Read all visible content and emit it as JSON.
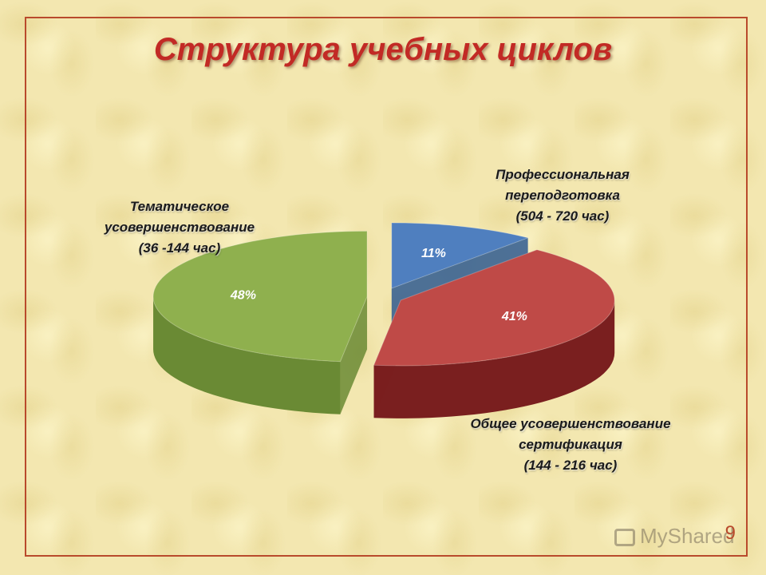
{
  "title": "Структура учебных циклов",
  "page_number": "9",
  "watermark": "MyShared",
  "labels": {
    "professional": [
      "Профессиональная",
      "переподготовка",
      "(504 - 720 час)"
    ],
    "thematic": [
      "Тематическое",
      "усовершенствование",
      "(36 -144 час)"
    ],
    "general": [
      "Общее усовершенствование",
      "сертификация",
      "(144 - 216 час)"
    ]
  },
  "chart_data": {
    "type": "pie",
    "style": "3d-exploded",
    "categories": [
      "Профессиональная переподготовка (504 - 720 час)",
      "Общее усовершенствование сертификация (144 - 216 час)",
      "Тематическое усовершенствование (36 -144 час)"
    ],
    "values": [
      11,
      41,
      48
    ],
    "value_labels": [
      "11%",
      "41%",
      "48%"
    ],
    "colors": [
      "#4f7fbf",
      "#bf4a47",
      "#8fb04e"
    ],
    "side_colors": [
      "#2f5a90",
      "#7a1f1f",
      "#6a8a34"
    ]
  }
}
